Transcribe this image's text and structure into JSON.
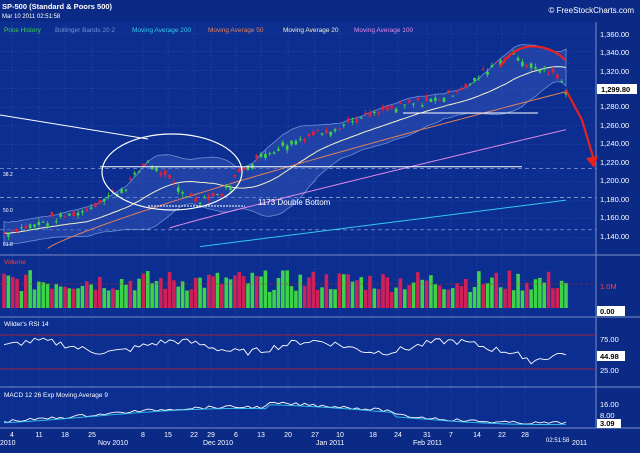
{
  "header": {
    "title": "SP-500 (Standard & Poors 500)",
    "datetime": "Mar 10 2011 02:51:58",
    "brand": "© FreeStockCharts.com",
    "footer_time": "02:51:58"
  },
  "legend": [
    {
      "label": "Price History",
      "color": "#3cd24a"
    },
    {
      "label": "Bollinger Bands 20 2",
      "color": "#6f8fd0"
    },
    {
      "label": "Moving Average 200",
      "color": "#33c8f0"
    },
    {
      "label": "Moving Average 50",
      "color": "#e0805a"
    },
    {
      "label": "Moving Average 20",
      "color": "#f2f2c8"
    },
    {
      "label": "Moving Average 100",
      "color": "#e08ae8"
    }
  ],
  "annotation_text": "1173 Double Bottom",
  "fib_labels": [
    "38.2",
    "50.0",
    "61.8"
  ],
  "chart_data": [
    {
      "type": "candlestick",
      "title": "SP-500 (Standard & Poors 500)",
      "ylim": [
        1122,
        1372
      ],
      "y_ticks": [
        "1,360.00",
        "1,340.00",
        "1,320.00",
        "1,300.00",
        "1,280.00",
        "1,260.00",
        "1,240.00",
        "1,220.00",
        "1,200.00",
        "1,180.00",
        "1,160.00",
        "1,140.00"
      ],
      "last_price": "1,299.80",
      "x_tick_labels": [
        "4",
        "11",
        "18",
        "25",
        "8",
        "15",
        "22",
        "29",
        "6",
        "13",
        "20",
        "27",
        "10",
        "18",
        "24",
        "31",
        "7",
        "14",
        "22",
        "28"
      ],
      "x_month_labels": [
        "2010",
        "Nov 2010",
        "Dec 2010",
        "Jan 2011",
        "Feb 2011",
        "2011"
      ],
      "grid": true,
      "horizontal_levels": [
        1216,
        1243,
        1274
      ]
    },
    {
      "type": "bar",
      "title": "Volume",
      "y_ticks": [
        "1.0M"
      ],
      "last_value": "0.00"
    },
    {
      "type": "line",
      "title": "Wilder's RSI 14",
      "y_ticks": [
        "75.00",
        "25.00"
      ],
      "last_value": "44.98"
    },
    {
      "type": "line",
      "title": "MACD 12 26  Exp Moving Average 9",
      "y_ticks": [
        "16.00",
        "8.00"
      ],
      "last_value": "3.09"
    }
  ]
}
